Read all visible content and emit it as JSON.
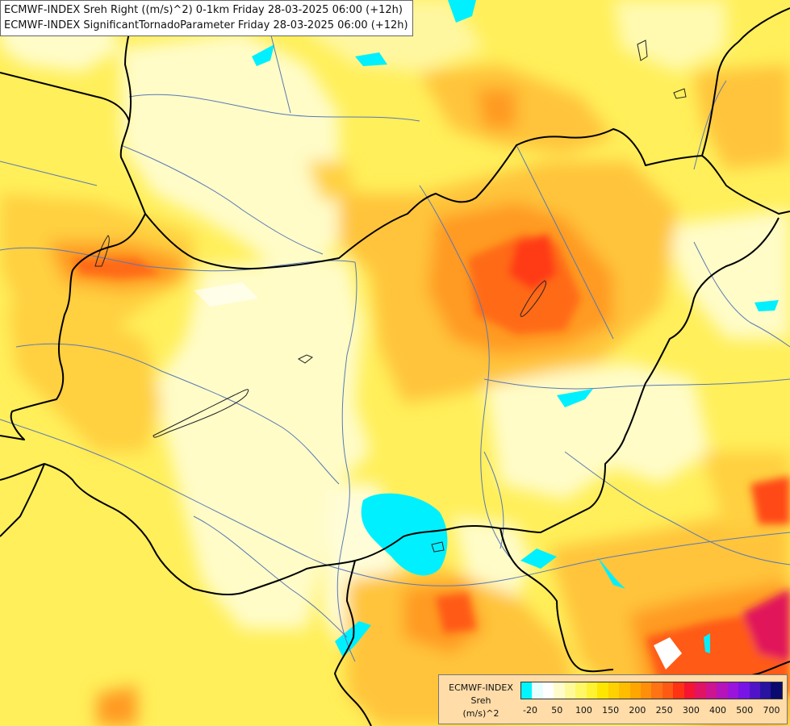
{
  "title": {
    "line1": "ECMWF-INDEX Sreh Right ((m/s)^2) 0-1km Friday 28-03-2025 06:00 (+12h)",
    "line2": "ECMWF-INDEX SignificantTornadoParameter Friday 28-03-2025 06:00 (+12h)"
  },
  "legend": {
    "model": "ECMWF-INDEX",
    "parameter": "Sreh",
    "unit": "(m/s)^2",
    "tick_labels": [
      "-20",
      "50",
      "100",
      "150",
      "200",
      "250",
      "300",
      "400",
      "500",
      "700"
    ],
    "colors": [
      "#00f5ff",
      "#e8ffff",
      "#ffffff",
      "#fffccc",
      "#fffa99",
      "#fff766",
      "#fff233",
      "#ffe600",
      "#ffd100",
      "#ffbd00",
      "#ffa600",
      "#ff8f0a",
      "#ff7314",
      "#ff5a14",
      "#ff3214",
      "#f51432",
      "#e11464",
      "#cd1491",
      "#b414b9",
      "#9b14dc",
      "#7814e6",
      "#5014c8",
      "#2814a0",
      "#0a0a6e"
    ]
  }
}
